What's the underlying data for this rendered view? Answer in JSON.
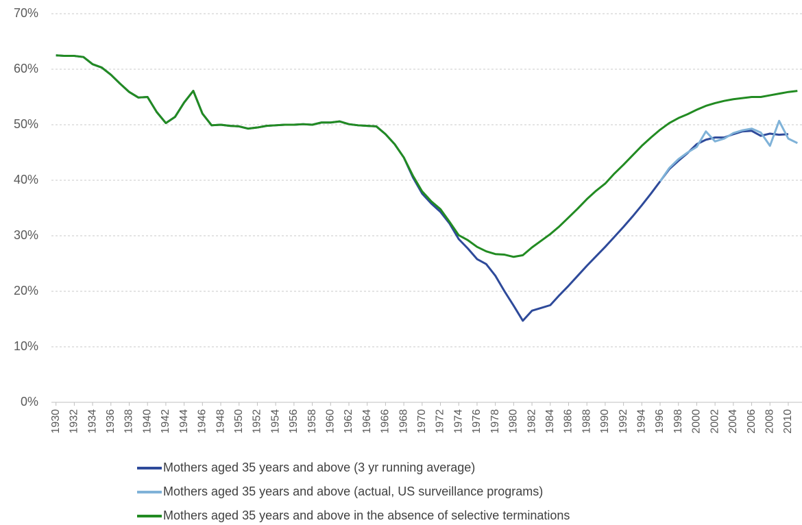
{
  "chart_data": {
    "type": "line",
    "x": [
      1930,
      1931,
      1932,
      1933,
      1934,
      1935,
      1936,
      1937,
      1938,
      1939,
      1940,
      1941,
      1942,
      1943,
      1944,
      1945,
      1946,
      1947,
      1948,
      1949,
      1950,
      1951,
      1952,
      1953,
      1954,
      1955,
      1956,
      1957,
      1958,
      1959,
      1960,
      1961,
      1962,
      1963,
      1964,
      1965,
      1966,
      1967,
      1968,
      1969,
      1970,
      1971,
      1972,
      1973,
      1974,
      1975,
      1976,
      1977,
      1978,
      1979,
      1980,
      1981,
      1982,
      1983,
      1984,
      1985,
      1986,
      1987,
      1988,
      1989,
      1990,
      1991,
      1992,
      1993,
      1994,
      1995,
      1996,
      1997,
      1998,
      1999,
      2000,
      2001,
      2002,
      2003,
      2004,
      2005,
      2006,
      2007,
      2008,
      2009,
      2010,
      2011
    ],
    "xlim": [
      1929.5,
      2011.5
    ],
    "xticks": [
      1930,
      1932,
      1934,
      1936,
      1938,
      1940,
      1942,
      1944,
      1946,
      1948,
      1950,
      1952,
      1954,
      1956,
      1958,
      1960,
      1962,
      1964,
      1966,
      1968,
      1970,
      1972,
      1974,
      1976,
      1978,
      1980,
      1982,
      1984,
      1986,
      1988,
      1990,
      1992,
      1994,
      1996,
      1998,
      2000,
      2002,
      2004,
      2006,
      2008,
      2010
    ],
    "ylim": [
      0,
      70
    ],
    "yticks": [
      {
        "value": 0,
        "label": "0%"
      },
      {
        "value": 10,
        "label": "10%"
      },
      {
        "value": 20,
        "label": "20%"
      },
      {
        "value": 30,
        "label": "30%"
      },
      {
        "value": 40,
        "label": "40%"
      },
      {
        "value": 50,
        "label": "50%"
      },
      {
        "value": 60,
        "label": "60%"
      },
      {
        "value": 70,
        "label": "70%"
      }
    ],
    "grid": true,
    "series": [
      {
        "name": "Mothers aged 35 years and above (3 yr running average)",
        "color": "#2e4a9a",
        "values": [
          62.5,
          62.4,
          62.4,
          62.2,
          60.9,
          60.3,
          59.0,
          57.4,
          55.9,
          54.9,
          55.0,
          52.3,
          50.3,
          51.4,
          54.0,
          56.1,
          52.0,
          49.9,
          50.0,
          49.8,
          49.7,
          49.3,
          49.5,
          49.8,
          49.9,
          50.0,
          50.0,
          50.1,
          50.0,
          50.4,
          50.4,
          50.6,
          50.1,
          49.9,
          49.8,
          49.7,
          48.3,
          46.5,
          44.1,
          40.5,
          37.6,
          35.8,
          34.3,
          32.2,
          29.4,
          27.7,
          25.8,
          24.9,
          22.8,
          20.0,
          17.4,
          14.7,
          16.5,
          17.0,
          17.5,
          19.3,
          21.0,
          22.8,
          24.6,
          26.3,
          28.0,
          29.8,
          31.6,
          33.5,
          35.5,
          37.6,
          39.8,
          42.0,
          43.5,
          44.9,
          46.5,
          47.3,
          47.7,
          47.7,
          48.3,
          48.8,
          48.9,
          48.0,
          48.4,
          48.2,
          48.3,
          null
        ]
      },
      {
        "name": "Mothers aged 35 years and above (actual, US surveillance programs)",
        "color": "#7fb2d8",
        "values": [
          null,
          null,
          null,
          null,
          null,
          null,
          null,
          null,
          null,
          null,
          null,
          null,
          null,
          null,
          null,
          null,
          null,
          null,
          null,
          null,
          null,
          null,
          null,
          null,
          null,
          null,
          null,
          null,
          null,
          null,
          null,
          null,
          null,
          null,
          null,
          null,
          null,
          null,
          null,
          null,
          null,
          null,
          null,
          null,
          null,
          null,
          null,
          null,
          null,
          null,
          null,
          null,
          null,
          null,
          null,
          null,
          null,
          null,
          null,
          null,
          null,
          null,
          null,
          null,
          null,
          null,
          39.8,
          42.2,
          43.8,
          45.0,
          46.0,
          48.8,
          47.0,
          47.5,
          48.5,
          49.0,
          49.3,
          48.6,
          46.2,
          50.7,
          47.5,
          46.7
        ]
      },
      {
        "name": "Mothers aged 35 years and above in the absence of selective terminations",
        "color": "#228b22",
        "values": [
          62.5,
          62.4,
          62.4,
          62.2,
          60.9,
          60.3,
          59.0,
          57.4,
          55.9,
          54.9,
          55.0,
          52.3,
          50.3,
          51.4,
          54.0,
          56.1,
          52.0,
          49.9,
          50.0,
          49.8,
          49.7,
          49.3,
          49.5,
          49.8,
          49.9,
          50.0,
          50.0,
          50.1,
          50.0,
          50.4,
          50.4,
          50.6,
          50.1,
          49.9,
          49.8,
          49.7,
          48.3,
          46.5,
          44.1,
          40.8,
          38.0,
          36.2,
          34.8,
          32.5,
          30.1,
          29.2,
          28.0,
          27.2,
          26.7,
          26.6,
          26.2,
          26.5,
          27.9,
          29.1,
          30.3,
          31.7,
          33.3,
          34.9,
          36.6,
          38.1,
          39.4,
          41.2,
          42.8,
          44.5,
          46.2,
          47.7,
          49.1,
          50.3,
          51.2,
          51.9,
          52.7,
          53.4,
          53.9,
          54.3,
          54.6,
          54.8,
          55.0,
          55.0,
          55.3,
          55.6,
          55.9,
          56.1
        ]
      }
    ]
  }
}
